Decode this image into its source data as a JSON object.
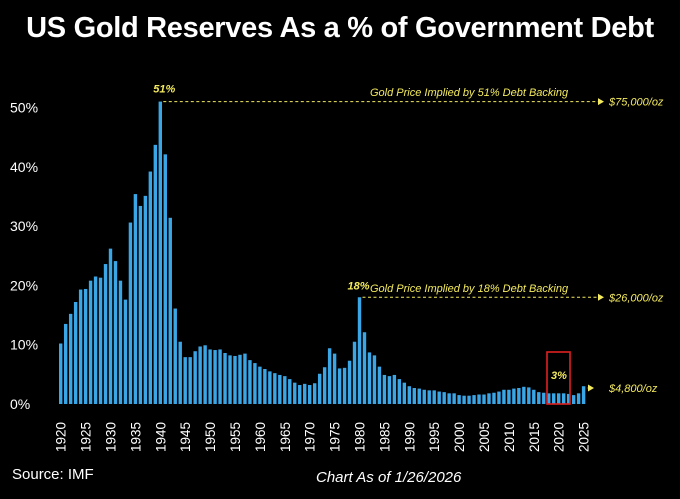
{
  "colors": {
    "background": "#000000",
    "bar": "#3aa6e6",
    "annotation": "#f3ea5f",
    "highlight_box": "#e02020",
    "text": "#ffffff"
  },
  "chart_data": {
    "type": "bar",
    "title": "US Gold Reserves As a % of Government Debt",
    "xlabel": "",
    "ylabel": "",
    "ylim": [
      0,
      55
    ],
    "y_ticks": [
      "0%",
      "10%",
      "20%",
      "30%",
      "40%",
      "50%"
    ],
    "x_ticks": [
      "1920",
      "1925",
      "1930",
      "1935",
      "1940",
      "1945",
      "1950",
      "1955",
      "1960",
      "1965",
      "1970",
      "1975",
      "1980",
      "1985",
      "1990",
      "1995",
      "2000",
      "2005",
      "2010",
      "2015",
      "2020",
      "2025"
    ],
    "grid": false,
    "years": [
      1920,
      1921,
      1922,
      1923,
      1924,
      1925,
      1926,
      1927,
      1928,
      1929,
      1930,
      1931,
      1932,
      1933,
      1934,
      1935,
      1936,
      1937,
      1938,
      1939,
      1940,
      1941,
      1942,
      1943,
      1944,
      1945,
      1946,
      1947,
      1948,
      1949,
      1950,
      1951,
      1952,
      1953,
      1954,
      1955,
      1956,
      1957,
      1958,
      1959,
      1960,
      1961,
      1962,
      1963,
      1964,
      1965,
      1966,
      1967,
      1968,
      1969,
      1970,
      1971,
      1972,
      1973,
      1974,
      1975,
      1976,
      1977,
      1978,
      1979,
      1980,
      1981,
      1982,
      1983,
      1984,
      1985,
      1986,
      1987,
      1988,
      1989,
      1990,
      1991,
      1992,
      1993,
      1994,
      1995,
      1996,
      1997,
      1998,
      1999,
      2000,
      2001,
      2002,
      2003,
      2004,
      2005,
      2006,
      2007,
      2008,
      2009,
      2010,
      2011,
      2012,
      2013,
      2014,
      2015,
      2016,
      2017,
      2018,
      2019,
      2020,
      2021,
      2022,
      2023,
      2024,
      2025
    ],
    "values": [
      10.2,
      13.5,
      15.2,
      17.2,
      19.3,
      19.4,
      20.8,
      21.5,
      21.3,
      23.6,
      26.2,
      24.1,
      20.8,
      17.6,
      30.6,
      35.4,
      33.4,
      35.1,
      39.2,
      43.7,
      51.0,
      42.1,
      31.4,
      16.1,
      10.5,
      7.9,
      7.9,
      8.9,
      9.7,
      9.9,
      9.2,
      9.1,
      9.2,
      8.6,
      8.2,
      8.1,
      8.3,
      8.5,
      7.4,
      6.9,
      6.3,
      5.9,
      5.5,
      5.2,
      4.9,
      4.7,
      4.2,
      3.6,
      3.2,
      3.4,
      3.2,
      3.5,
      5.1,
      6.2,
      9.4,
      8.5,
      6.0,
      6.1,
      7.3,
      10.5,
      18.0,
      12.1,
      8.7,
      8.2,
      6.3,
      4.9,
      4.7,
      4.9,
      4.2,
      3.6,
      3.0,
      2.7,
      2.6,
      2.4,
      2.3,
      2.3,
      2.1,
      2.0,
      1.8,
      1.8,
      1.5,
      1.4,
      1.4,
      1.5,
      1.6,
      1.6,
      1.8,
      1.9,
      2.1,
      2.4,
      2.4,
      2.6,
      2.7,
      2.9,
      2.8,
      2.4,
      2.0,
      1.9,
      1.8,
      1.8,
      1.8,
      1.8,
      1.7,
      1.5,
      1.8,
      3.0
    ],
    "annotations": {
      "peak_1940": "51%",
      "peak_1980": "18%",
      "latest_2025": "3%",
      "line_51": "Gold Price Implied by 51% Debt Backing",
      "line_18": "Gold Price Implied by 18% Debt Backing",
      "price_51": "$75,000/oz",
      "price_18": "$26,000/oz",
      "price_3": "$4,800/oz"
    }
  },
  "footer": {
    "source": "Source: IMF",
    "date": "Chart As of 1/26/2026"
  }
}
